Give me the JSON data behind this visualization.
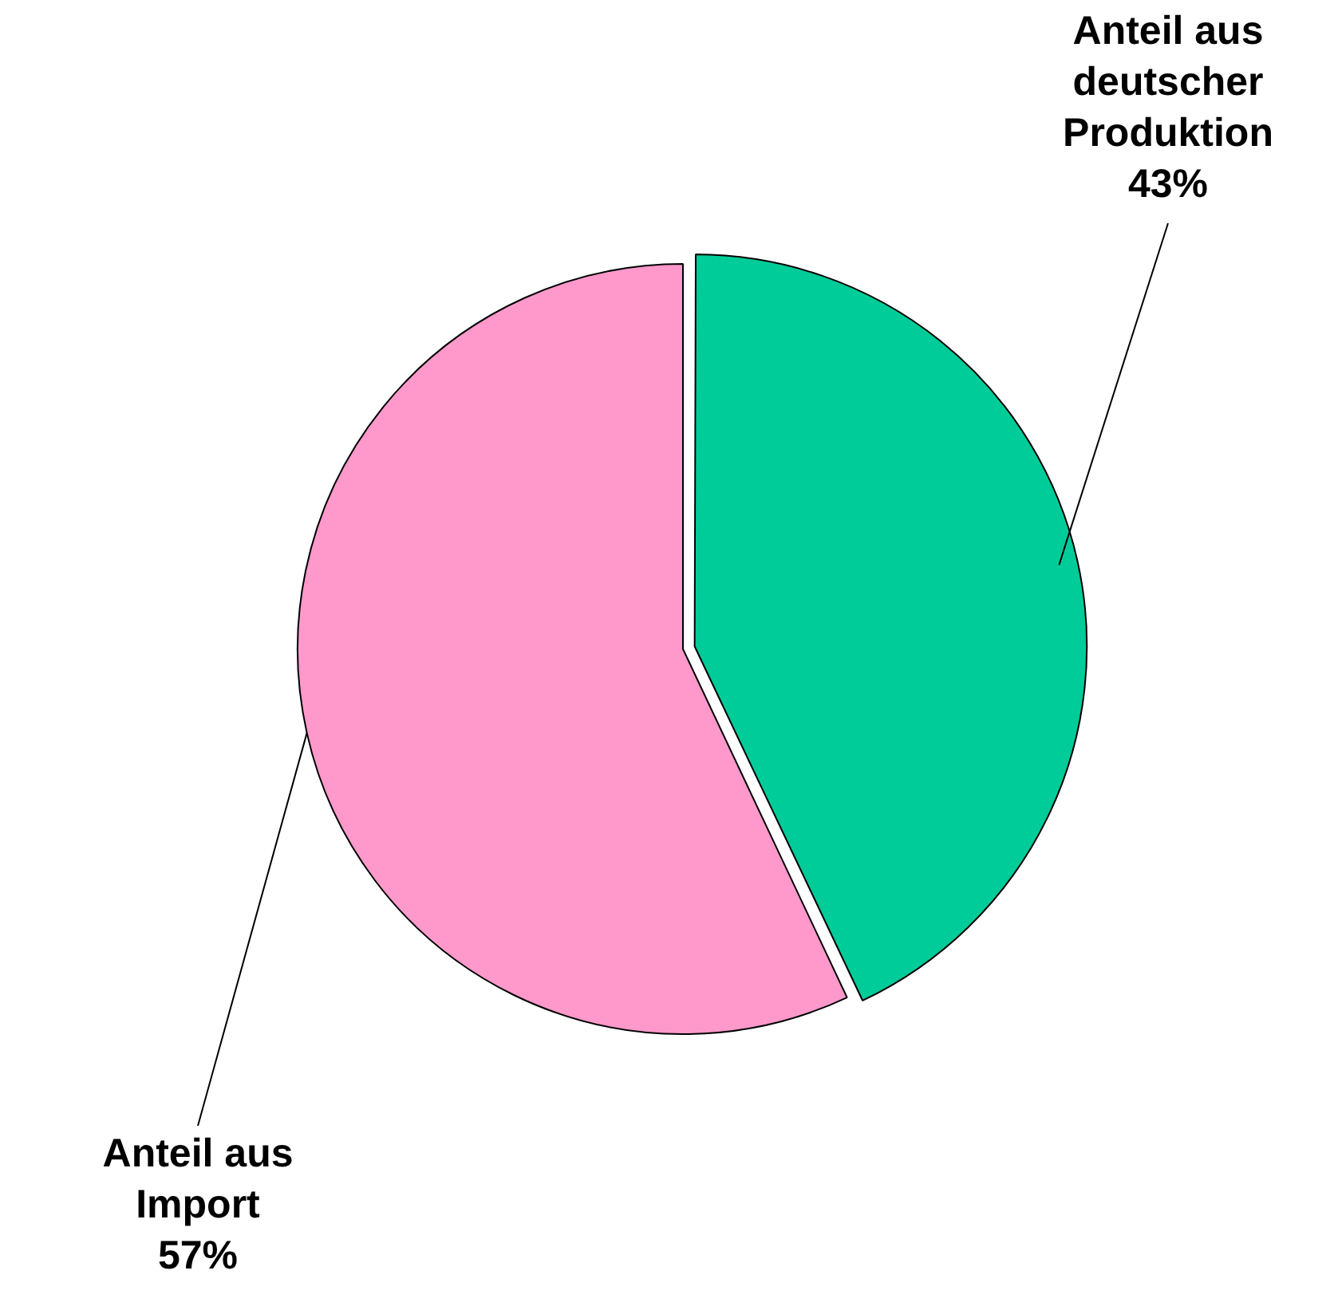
{
  "chart_data": {
    "type": "pie",
    "categories": [
      "Anteil aus deutscher Produktion",
      "Anteil aus Import"
    ],
    "values": [
      43,
      57
    ],
    "colors": [
      "#00cc99",
      "#ff99cc"
    ],
    "value_labels": [
      "43%",
      "57%"
    ],
    "legend": false
  }
}
